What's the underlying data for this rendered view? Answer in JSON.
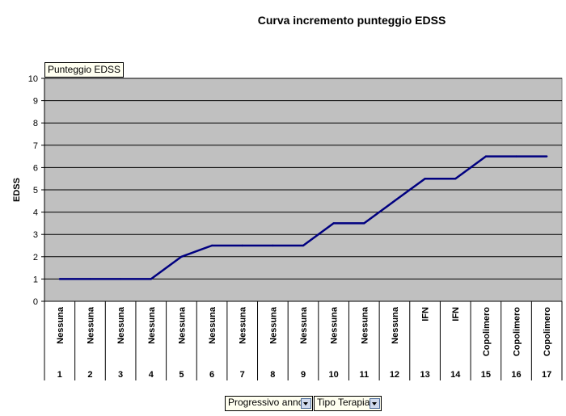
{
  "chart_data": {
    "type": "line",
    "title": "Curva incremento punteggio EDSS",
    "ylabel": "EDSS",
    "series_label": "Punteggio EDSS",
    "ylim": [
      0,
      10
    ],
    "yticks": [
      0,
      1,
      2,
      3,
      4,
      5,
      6,
      7,
      8,
      9,
      10
    ],
    "categories": [
      {
        "therapy": "Nessuna",
        "year": "1"
      },
      {
        "therapy": "Nessuna",
        "year": "2"
      },
      {
        "therapy": "Nessuna",
        "year": "3"
      },
      {
        "therapy": "Nessuna",
        "year": "4"
      },
      {
        "therapy": "Nessuna",
        "year": "5"
      },
      {
        "therapy": "Nessuna",
        "year": "6"
      },
      {
        "therapy": "Nessuna",
        "year": "7"
      },
      {
        "therapy": "Nessuna",
        "year": "8"
      },
      {
        "therapy": "Nessuna",
        "year": "9"
      },
      {
        "therapy": "Nessuna",
        "year": "10"
      },
      {
        "therapy": "Nessuna",
        "year": "11"
      },
      {
        "therapy": "Nessuna",
        "year": "12"
      },
      {
        "therapy": "IFN",
        "year": "13"
      },
      {
        "therapy": "IFN",
        "year": "14"
      },
      {
        "therapy": "Copolimero",
        "year": "15"
      },
      {
        "therapy": "Copolimero",
        "year": "16"
      },
      {
        "therapy": "Copolimero",
        "year": "17"
      }
    ],
    "values": [
      1,
      1,
      1,
      1,
      2,
      2.5,
      2.5,
      2.5,
      2.5,
      3.5,
      3.5,
      4.5,
      5.5,
      5.5,
      6.5,
      6.5,
      6.5
    ],
    "grid": true,
    "colors": {
      "plot_bg": "#c0c0c0",
      "line": "#000080",
      "grid": "#000000"
    }
  },
  "controls": {
    "row_field_1": "Progressivo anno",
    "row_field_2": "Tipo Terapia"
  }
}
